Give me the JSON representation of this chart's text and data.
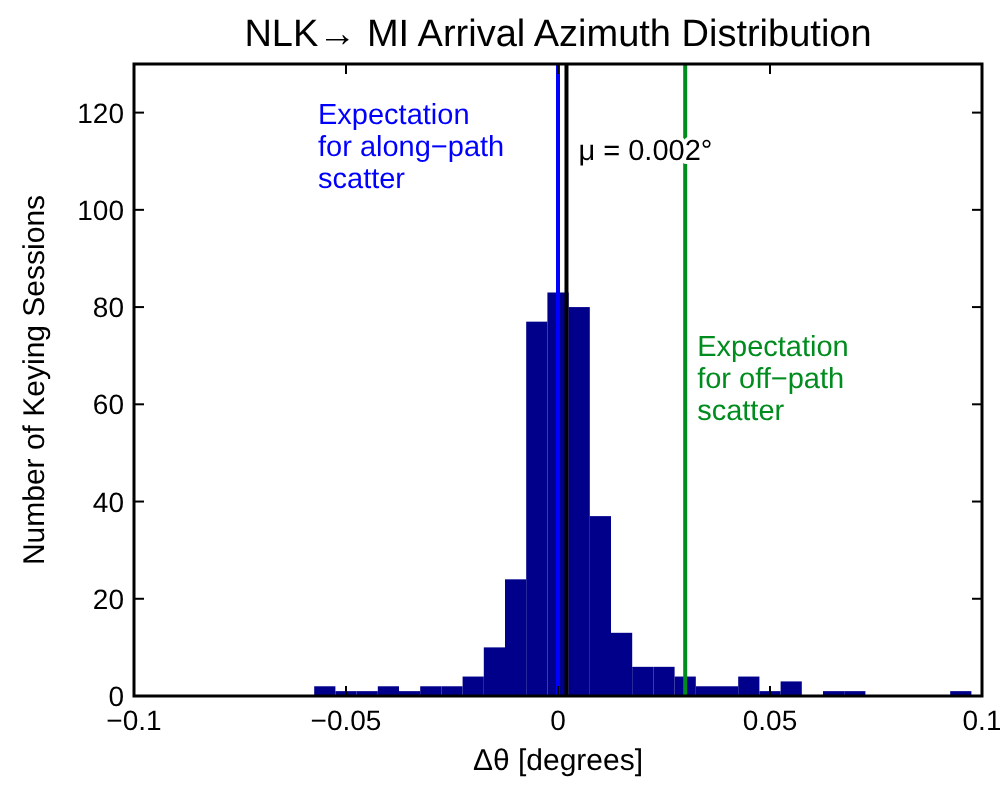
{
  "chart_data": {
    "type": "histogram",
    "title": "NLK→ MI Arrival Azimuth Distribution",
    "xlabel": "Δθ  [degrees]",
    "ylabel": "Number of Keying Sessions",
    "bins": [
      -0.0575,
      -0.0525,
      -0.0475,
      -0.0425,
      -0.0375,
      -0.0325,
      -0.0275,
      -0.0225,
      -0.0175,
      -0.0125,
      -0.0075,
      -0.0025,
      0.0025,
      0.0075,
      0.0125,
      0.0175,
      0.0225,
      0.0275,
      0.0325,
      0.0375,
      0.0425,
      0.0475,
      0.0525,
      0.0575,
      0.0625,
      0.0675,
      0.0725,
      0.0775,
      0.0825,
      0.0875,
      0.0925,
      0.0975
    ],
    "values": [
      2,
      1,
      1,
      2,
      1,
      2,
      2,
      4,
      10,
      24,
      77,
      83,
      80,
      37,
      13,
      6,
      6,
      4,
      2,
      2,
      4,
      1,
      3,
      0,
      1,
      1,
      0,
      0,
      0,
      0,
      1
    ],
    "color": "#00008b",
    "xlim": [
      -0.1,
      0.1
    ],
    "xticks": [
      -0.1,
      -0.05,
      0,
      0.05,
      0.1
    ],
    "ylim": [
      0,
      130
    ],
    "yticks": [
      0,
      20,
      40,
      60,
      80,
      100,
      120
    ],
    "grid": false,
    "ref_lines": [
      {
        "axis": "x",
        "value": 0,
        "label": "Expectation for along−path scatter",
        "color": "#0000ff"
      },
      {
        "axis": "x",
        "value": 0.002,
        "label": "μ = 0.002°",
        "color": "#000000"
      },
      {
        "axis": "x",
        "value": 0.03,
        "label": "Expectation for off−path scatter",
        "color": "#008c1e"
      }
    ]
  }
}
